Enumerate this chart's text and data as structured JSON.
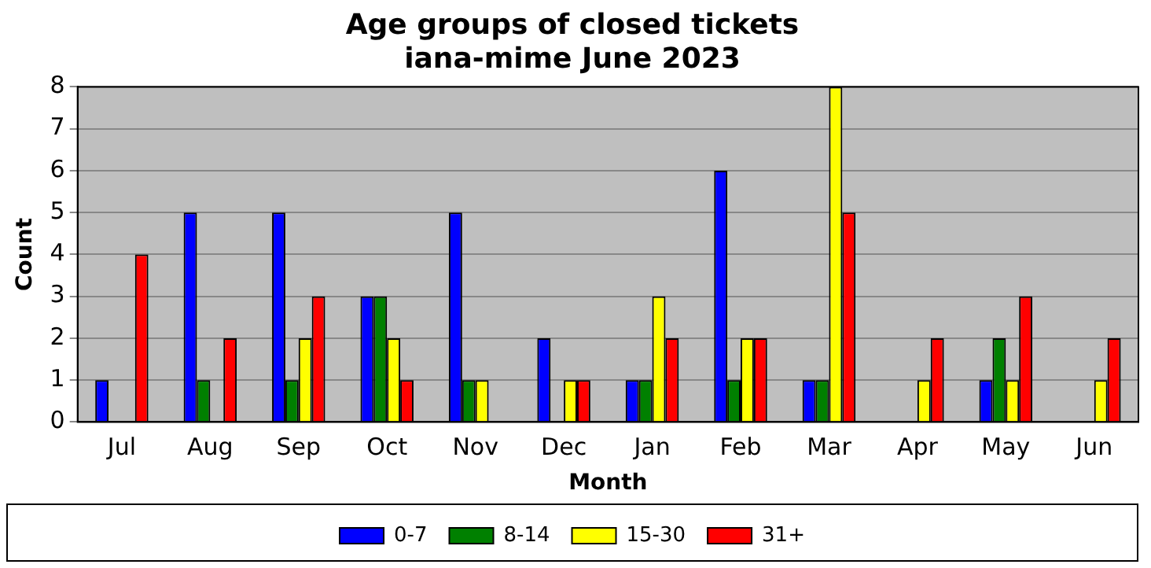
{
  "chart_data": {
    "type": "bar",
    "title": "Age groups of closed tickets",
    "subtitle": "iana-mime June 2023",
    "xlabel": "Month",
    "ylabel": "Count",
    "categories": [
      "Jul",
      "Aug",
      "Sep",
      "Oct",
      "Nov",
      "Dec",
      "Jan",
      "Feb",
      "Mar",
      "Apr",
      "May",
      "Jun"
    ],
    "series": [
      {
        "name": "0-7",
        "color": "#0000ff",
        "values": [
          1,
          5,
          5,
          3,
          5,
          2,
          1,
          6,
          1,
          0,
          1,
          0
        ]
      },
      {
        "name": "8-14",
        "color": "#008000",
        "values": [
          0,
          1,
          1,
          3,
          1,
          0,
          1,
          1,
          1,
          0,
          2,
          0
        ]
      },
      {
        "name": "15-30",
        "color": "#ffff00",
        "values": [
          0,
          0,
          2,
          2,
          1,
          1,
          3,
          2,
          8,
          1,
          1,
          1
        ]
      },
      {
        "name": "31+",
        "color": "#ff0000",
        "values": [
          4,
          2,
          3,
          1,
          0,
          1,
          2,
          2,
          5,
          2,
          3,
          2
        ]
      }
    ],
    "ylim": [
      0,
      8
    ],
    "yticks": [
      0,
      1,
      2,
      3,
      4,
      5,
      6,
      7,
      8
    ],
    "grid": "y",
    "legend": "bottom"
  }
}
